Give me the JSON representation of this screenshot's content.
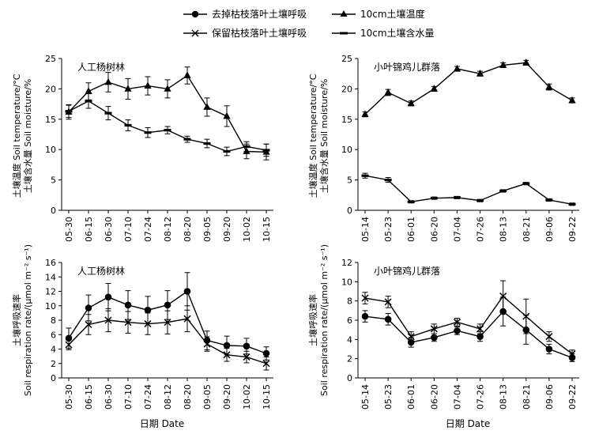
{
  "legend": {
    "items": [
      {
        "label": "去掉枯枝落叶土壤呼吸",
        "marker": "circle"
      },
      {
        "label": "10cm土壤温度",
        "marker": "triangle"
      },
      {
        "label": "保留枯枝落叶土壤呼吸",
        "marker": "cross"
      },
      {
        "label": "10cm土壤含水量",
        "marker": "dash"
      }
    ]
  },
  "xlabel": "日期 Date",
  "ylabel_top": [
    "土壤温度 Soil temperature/°C",
    "土壤含水量 Soil moisture/%"
  ],
  "ylabel_bottom": [
    "土壤呼吸速率",
    "Soil respiration rate/(μmol m⁻² s⁻¹)"
  ],
  "chart_data": [
    {
      "type": "line",
      "title": "人工杨树林",
      "categories": [
        "05-30",
        "06-15",
        "06-30",
        "07-10",
        "07-24",
        "08-12",
        "08-20",
        "09-05",
        "09-20",
        "10-02",
        "10-15"
      ],
      "ylim": [
        0,
        25
      ],
      "yticks": [
        0,
        5,
        10,
        15,
        20,
        25
      ],
      "series": [
        {
          "name": "10cm土壤温度",
          "marker": "triangle",
          "values": [
            16.2,
            19.6,
            21.1,
            20.0,
            20.5,
            20.0,
            22.2,
            17.0,
            15.5,
            9.7,
            9.6
          ],
          "errors": [
            1.2,
            1.4,
            1.6,
            1.7,
            1.5,
            1.5,
            1.4,
            1.5,
            1.7,
            1.2,
            1.3
          ]
        },
        {
          "name": "10cm土壤含水量",
          "marker": "dash",
          "values": [
            16.3,
            18.0,
            16.0,
            14.0,
            12.8,
            13.2,
            11.7,
            11.0,
            9.7,
            10.5,
            9.9
          ],
          "errors": [
            1.0,
            1.2,
            1.1,
            0.9,
            0.8,
            0.6,
            0.5,
            0.7,
            0.7,
            0.8,
            1.0
          ]
        }
      ]
    },
    {
      "type": "line",
      "title": "小叶锦鸡儿群落",
      "categories": [
        "05-14",
        "05-23",
        "06-01",
        "06-20",
        "07-04",
        "07-26",
        "08-13",
        "08-21",
        "09-06",
        "09-22"
      ],
      "ylim": [
        0,
        25
      ],
      "yticks": [
        0,
        5,
        10,
        15,
        20,
        25
      ],
      "series": [
        {
          "name": "10cm土壤温度",
          "marker": "triangle",
          "values": [
            15.8,
            19.4,
            17.6,
            20.0,
            23.3,
            22.5,
            23.9,
            24.3,
            20.3,
            18.1
          ],
          "errors": [
            0.4,
            0.5,
            0.4,
            0.4,
            0.4,
            0.4,
            0.4,
            0.4,
            0.5,
            0.4
          ]
        },
        {
          "name": "10cm土壤含水量",
          "marker": "dash",
          "values": [
            5.7,
            5.0,
            1.4,
            2.0,
            2.1,
            1.6,
            3.2,
            4.4,
            1.7,
            1.0
          ],
          "errors": [
            0.4,
            0.4,
            0.2,
            0.2,
            0.2,
            0.2,
            0.2,
            0.2,
            0.2,
            0.2
          ]
        }
      ]
    },
    {
      "type": "line",
      "title": "人工杨树林",
      "categories": [
        "05-30",
        "06-15",
        "06-30",
        "07-10",
        "07-24",
        "08-12",
        "08-20",
        "09-05",
        "09-20",
        "10-02",
        "10-15"
      ],
      "ylim": [
        0,
        16
      ],
      "yticks": [
        0,
        2,
        4,
        6,
        8,
        10,
        12,
        14,
        16
      ],
      "series": [
        {
          "name": "去掉枯枝落叶土壤呼吸",
          "marker": "circle",
          "values": [
            5.5,
            9.7,
            11.2,
            10.1,
            9.4,
            10.1,
            12.0,
            5.2,
            4.5,
            4.4,
            3.4
          ],
          "errors": [
            1.4,
            1.8,
            1.9,
            2.0,
            1.9,
            2.0,
            2.6,
            1.3,
            1.3,
            1.1,
            0.9
          ]
        },
        {
          "name": "保留枯枝落叶土壤呼吸",
          "marker": "cross",
          "values": [
            4.6,
            7.4,
            8.0,
            7.7,
            7.5,
            7.7,
            8.2,
            4.7,
            3.2,
            2.9,
            2.0
          ],
          "errors": [
            0.7,
            1.4,
            1.6,
            1.5,
            1.5,
            1.6,
            1.8,
            1.0,
            0.9,
            0.8,
            0.9
          ]
        }
      ]
    },
    {
      "type": "line",
      "title": "小叶锦鸡儿群落",
      "categories": [
        "05-14",
        "05-23",
        "06-01",
        "06-20",
        "07-04",
        "07-26",
        "08-13",
        "08-21",
        "09-06",
        "09-22"
      ],
      "ylim": [
        0,
        12
      ],
      "yticks": [
        0,
        2,
        4,
        6,
        8,
        10,
        12
      ],
      "series": [
        {
          "name": "去掉枯枝落叶土壤呼吸",
          "marker": "circle",
          "values": [
            6.4,
            6.1,
            3.7,
            4.2,
            4.9,
            4.3,
            6.9,
            5.0,
            3.0,
            2.1
          ],
          "errors": [
            0.6,
            0.6,
            0.5,
            0.4,
            0.4,
            0.5,
            1.5,
            1.5,
            0.5,
            0.4
          ]
        },
        {
          "name": "保留枯枝落叶土壤呼吸",
          "marker": "cross",
          "values": [
            8.3,
            7.9,
            4.3,
            5.1,
            5.8,
            5.1,
            8.5,
            6.4,
            4.3,
            2.5
          ],
          "errors": [
            0.6,
            0.6,
            0.5,
            0.5,
            0.4,
            0.5,
            1.6,
            1.8,
            0.5,
            0.4
          ]
        }
      ]
    }
  ]
}
